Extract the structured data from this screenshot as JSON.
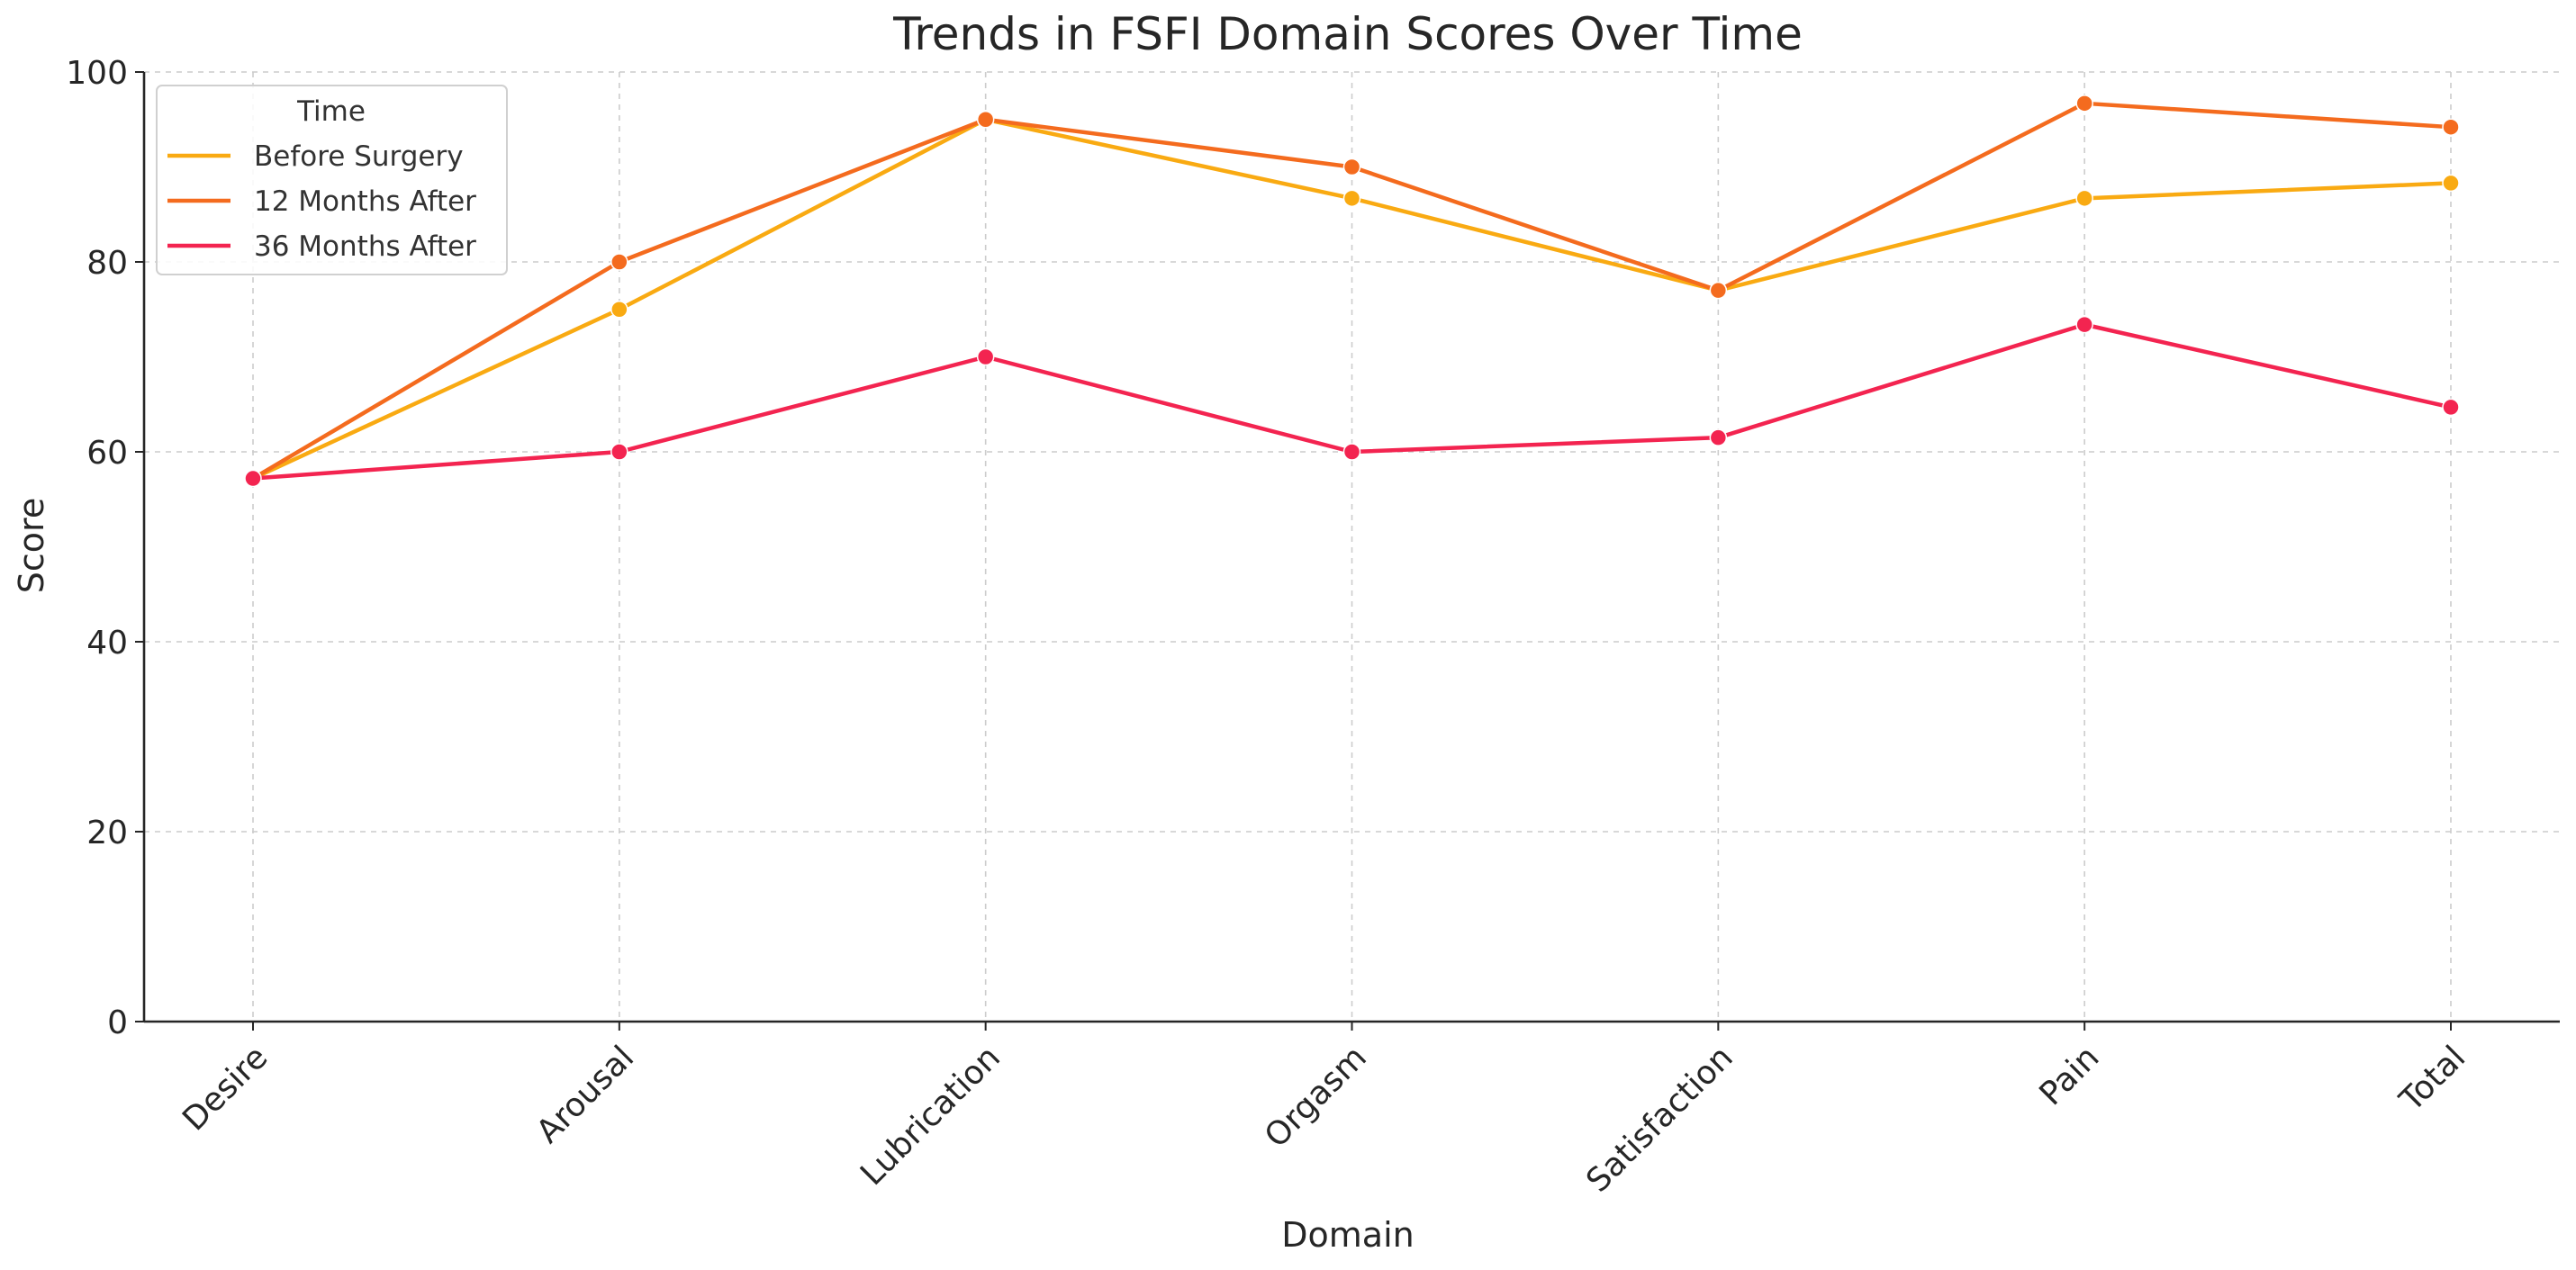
{
  "chart_data": {
    "type": "line",
    "title": "Trends in FSFI Domain Scores Over Time",
    "xlabel": "Domain",
    "ylabel": "Score",
    "ylim": [
      0,
      100
    ],
    "yticks": [
      0,
      20,
      40,
      60,
      80,
      100
    ],
    "categories": [
      "Desire",
      "Arousal",
      "Lubrication",
      "Orgasm",
      "Satisfaction",
      "Pain",
      "Total"
    ],
    "grid": true,
    "legend": {
      "title": "Time",
      "placement": "top-left"
    },
    "series": [
      {
        "name": "Before Surgery",
        "color": "#f9aa12",
        "values": [
          57.2,
          75,
          95,
          86.7,
          77,
          86.7,
          88.3
        ]
      },
      {
        "name": "12 Months After",
        "color": "#f46b1e",
        "values": [
          57.2,
          80,
          95,
          90,
          77,
          96.7,
          94.2
        ]
      },
      {
        "name": "36 Months After",
        "color": "#f32450",
        "values": [
          57.2,
          60,
          70,
          60,
          61.5,
          73.4,
          64.7
        ]
      }
    ]
  }
}
